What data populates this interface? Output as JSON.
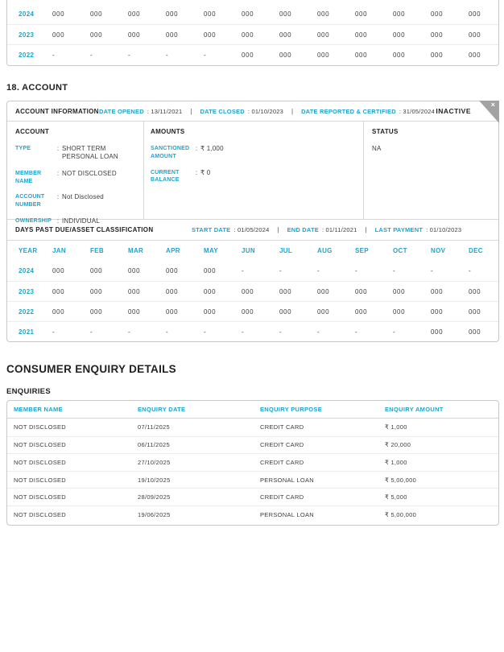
{
  "colors": {
    "accent": "#1ea4cc",
    "heading": "#222222",
    "value_text": "#3c3c3c",
    "panel_border": "#c8c8c8",
    "ribbon_gray": "#a3a3a3"
  },
  "top_table": {
    "rows": [
      {
        "year": "2024",
        "values": [
          "000",
          "000",
          "000",
          "000",
          "000",
          "000",
          "000",
          "000",
          "000",
          "000",
          "000",
          "000"
        ]
      },
      {
        "year": "2023",
        "values": [
          "000",
          "000",
          "000",
          "000",
          "000",
          "000",
          "000",
          "000",
          "000",
          "000",
          "000",
          "000"
        ]
      },
      {
        "year": "2022",
        "values": [
          "-",
          "-",
          "-",
          "-",
          "-",
          "000",
          "000",
          "000",
          "000",
          "000",
          "000",
          "000"
        ]
      }
    ]
  },
  "account_section": {
    "heading": "18. ACCOUNT",
    "info_header": {
      "title": "ACCOUNT INFORMATION",
      "fields": [
        {
          "label": "DATE OPENED",
          "value": ": 13/11/2021"
        },
        {
          "label": "DATE CLOSED",
          "value": ": 01/10/2023"
        },
        {
          "label": "DATE REPORTED & CERTIFIED",
          "value": ": 31/05/2024"
        }
      ],
      "status_badge": "INACTIVE",
      "close_icon": "×"
    },
    "account": {
      "title": "ACCOUNT",
      "fields": [
        {
          "label": "TYPE",
          "value": "SHORT TERM PERSONAL LOAN"
        },
        {
          "label": "MEMBER NAME",
          "value": "NOT DISCLOSED"
        },
        {
          "label": "ACCOUNT NUMBER",
          "value": "Not Disclosed"
        },
        {
          "label": "OWNERSHIP",
          "value": "INDIVIDUAL"
        }
      ]
    },
    "amounts": {
      "title": "AMOUNTS",
      "fields": [
        {
          "label": "SANCTIONED AMOUNT",
          "value": "₹ 1,000"
        },
        {
          "label": "CURRENT BALANCE",
          "value": "₹ 0"
        }
      ]
    },
    "status": {
      "title": "STATUS",
      "value": "NA"
    }
  },
  "dpd": {
    "title": "DAYS PAST DUE/ASSET CLASSIFICATION",
    "fields": [
      {
        "label": "START DATE",
        "value": ": 01/05/2024"
      },
      {
        "label": "END DATE",
        "value": ": 01/11/2021"
      },
      {
        "label": "LAST PAYMENT",
        "value": ": 01/10/2023"
      }
    ],
    "columns": [
      "YEAR",
      "JAN",
      "FEB",
      "MAR",
      "APR",
      "MAY",
      "JUN",
      "JUL",
      "AUG",
      "SEP",
      "OCT",
      "NOV",
      "DEC"
    ],
    "rows": [
      {
        "year": "2024",
        "values": [
          "000",
          "000",
          "000",
          "000",
          "000",
          "-",
          "-",
          "-",
          "-",
          "-",
          "-",
          "-"
        ]
      },
      {
        "year": "2023",
        "values": [
          "000",
          "000",
          "000",
          "000",
          "000",
          "000",
          "000",
          "000",
          "000",
          "000",
          "000",
          "000"
        ]
      },
      {
        "year": "2022",
        "values": [
          "000",
          "000",
          "000",
          "000",
          "000",
          "000",
          "000",
          "000",
          "000",
          "000",
          "000",
          "000"
        ]
      },
      {
        "year": "2021",
        "values": [
          "-",
          "-",
          "-",
          "-",
          "-",
          "-",
          "-",
          "-",
          "-",
          "-",
          "000",
          "000"
        ]
      }
    ]
  },
  "enquiry": {
    "heading": "CONSUMER ENQUIRY DETAILS",
    "subheading": "ENQUIRIES",
    "columns": [
      "MEMBER NAME",
      "ENQUIRY DATE",
      "ENQUIRY PURPOSE",
      "ENQUIRY AMOUNT"
    ],
    "rows": [
      {
        "member": "NOT DISCLOSED",
        "date": "07/11/2025",
        "purpose": "CREDIT CARD",
        "amount": "₹ 1,000"
      },
      {
        "member": "NOT DISCLOSED",
        "date": "06/11/2025",
        "purpose": "CREDIT CARD",
        "amount": "₹ 20,000"
      },
      {
        "member": "NOT DISCLOSED",
        "date": "27/10/2025",
        "purpose": "CREDIT CARD",
        "amount": "₹ 1,000"
      },
      {
        "member": "NOT DISCLOSED",
        "date": "19/10/2025",
        "purpose": "PERSONAL LOAN",
        "amount": "₹ 5,00,000"
      },
      {
        "member": "NOT DISCLOSED",
        "date": "28/09/2025",
        "purpose": "CREDIT CARD",
        "amount": "₹ 5,000"
      },
      {
        "member": "NOT DISCLOSED",
        "date": "19/06/2025",
        "purpose": "PERSONAL LOAN",
        "amount": "₹ 5,00,000"
      }
    ]
  }
}
